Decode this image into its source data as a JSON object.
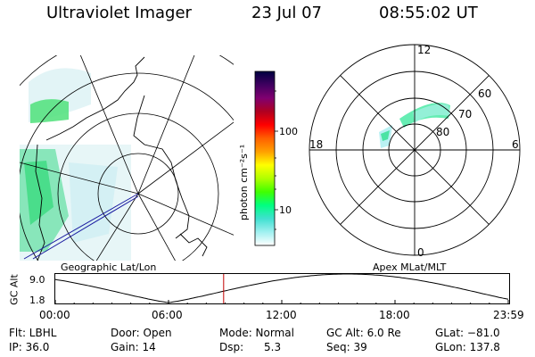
{
  "header": {
    "instrument": "Ultraviolet Imager",
    "date": "23 Jul 07",
    "time": "08:55:02 UT"
  },
  "geo_map": {
    "caption": "Geographic Lat/Lon"
  },
  "mlt_plot": {
    "caption": "Apex MLat/MLT",
    "mlt_labels": [
      "12",
      "18",
      "6",
      "0"
    ],
    "lat_labels": [
      "60",
      "70",
      "80"
    ]
  },
  "colorbar": {
    "unit_label": "photon cm⁻²s⁻¹",
    "tick_labels": [
      "100",
      "10"
    ],
    "colors": [
      "#000040",
      "#400060",
      "#800070",
      "#b00020",
      "#ff0000",
      "#ff6000",
      "#ffa000",
      "#ffff00",
      "#b0ff00",
      "#40ff00",
      "#00ff80",
      "#40e0d0",
      "#a0f0f0",
      "#ffffff"
    ]
  },
  "alt_plot": {
    "ylabel": "GC Alt",
    "ymax_label": "9.0",
    "ymin_label": "1.8",
    "xticks": [
      "00:00",
      "06:00",
      "12:00",
      "18:00",
      "23:59"
    ],
    "marker_time_hours": 8.92
  },
  "info": {
    "flt": "Flt: LBHL",
    "ip": "IP: 36.0",
    "door": "Door: Open",
    "gain": "Gain: 14",
    "mode": "Mode: Normal",
    "dsp": "Dsp:      5.3",
    "gcalt": "GC Alt: 6.0 Re",
    "seq": "Seq: 39",
    "glat": "GLat: −81.0",
    "glon": "GLon: 137.8"
  }
}
